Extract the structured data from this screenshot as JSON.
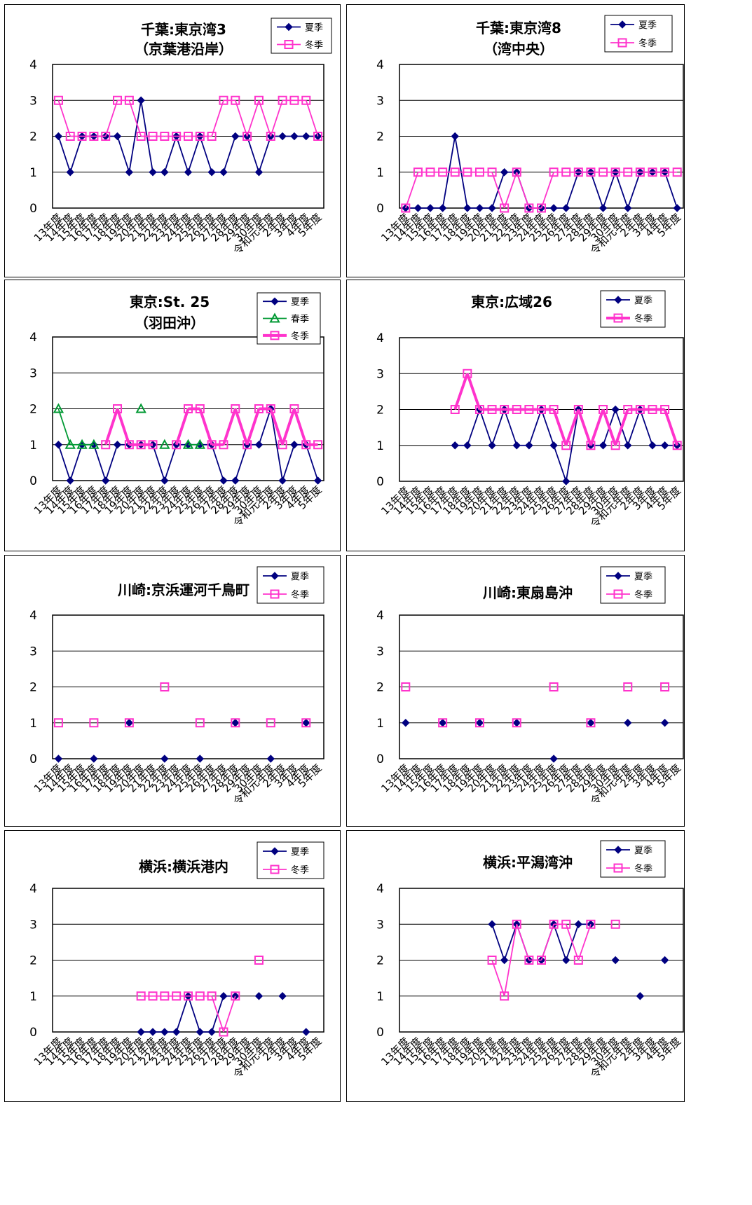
{
  "colors": {
    "summer": "#000080",
    "spring": "#009933",
    "winter": "#ff33cc",
    "grid": "#000000"
  },
  "chart_data": [
    {
      "type": "line",
      "title": [
        "千葉:東京湾3",
        "（京葉港沿岸）"
      ],
      "ylim": [
        0,
        4
      ],
      "yticks": [
        "0",
        "1",
        "2",
        "3",
        "4"
      ],
      "categories": [
        "13年度",
        "14年度",
        "15年度",
        "16年度",
        "17年度",
        "18年度",
        "19年度",
        "20年度",
        "21年度",
        "22年度",
        "23年度",
        "24年度",
        "25年度",
        "26年度",
        "27年度",
        "28年度",
        "29年度",
        "30年度",
        "令和元年度",
        "2年度",
        "3年度",
        "4年度",
        "5年度"
      ],
      "series": [
        {
          "name": "夏季",
          "key": "summer",
          "marker": "diamond",
          "values": [
            2,
            1,
            2,
            2,
            2,
            2,
            1,
            3,
            1,
            1,
            2,
            1,
            2,
            1,
            1,
            2,
            2,
            1,
            2,
            2,
            2,
            2,
            2
          ]
        },
        {
          "name": "冬季",
          "key": "winter",
          "marker": "square",
          "values": [
            3,
            2,
            2,
            2,
            2,
            3,
            3,
            2,
            2,
            2,
            2,
            2,
            2,
            2,
            3,
            3,
            2,
            3,
            2,
            3,
            3,
            3,
            2
          ]
        }
      ]
    },
    {
      "type": "line",
      "title": [
        "千葉:東京湾8",
        "（湾中央）"
      ],
      "ylim": [
        0,
        4
      ],
      "yticks": [
        "0",
        "1",
        "2",
        "3",
        "4"
      ],
      "categories": [
        "13年度",
        "14年度",
        "15年度",
        "16年度",
        "17年度",
        "18年度",
        "19年度",
        "20年度",
        "21年度",
        "22年度",
        "23年度",
        "24年度",
        "25年度",
        "26年度",
        "27年度",
        "28年度",
        "29年度",
        "30年度",
        "令和元年度",
        "2年度",
        "3年度",
        "4年度",
        "5年度"
      ],
      "series": [
        {
          "name": "夏季",
          "key": "summer",
          "marker": "diamond",
          "values": [
            0,
            0,
            0,
            0,
            2,
            0,
            0,
            0,
            1,
            1,
            0,
            0,
            0,
            0,
            1,
            1,
            0,
            1,
            0,
            1,
            1,
            1,
            0
          ]
        },
        {
          "name": "冬季",
          "key": "winter",
          "marker": "square",
          "values": [
            0,
            1,
            1,
            1,
            1,
            1,
            1,
            1,
            0,
            1,
            0,
            0,
            1,
            1,
            1,
            1,
            1,
            1,
            1,
            1,
            1,
            1,
            1
          ]
        }
      ]
    },
    {
      "type": "line",
      "title": [
        "東京:St. 25",
        "（羽田沖）"
      ],
      "ylim": [
        0,
        4
      ],
      "yticks": [
        "0",
        "1",
        "2",
        "3",
        "4"
      ],
      "categories": [
        "13年度",
        "14年度",
        "15年度",
        "16年度",
        "17年度",
        "18年度",
        "19年度",
        "20年度",
        "21年度",
        "22年度",
        "23年度",
        "24年度",
        "25年度",
        "26年度",
        "27年度",
        "28年度",
        "29年度",
        "30年度",
        "令和元年度",
        "2年度",
        "3年度",
        "4年度",
        "5年度"
      ],
      "series": [
        {
          "name": "夏季",
          "key": "summer",
          "marker": "diamond",
          "values": [
            1,
            0,
            1,
            1,
            0,
            1,
            1,
            1,
            1,
            0,
            1,
            1,
            1,
            1,
            0,
            0,
            1,
            1,
            2,
            0,
            1,
            1,
            0
          ]
        },
        {
          "name": "春季",
          "key": "spring",
          "marker": "triangle",
          "values": [
            2,
            1,
            1,
            1,
            null,
            null,
            null,
            2,
            null,
            1,
            null,
            1,
            1,
            null,
            null,
            null,
            null,
            null,
            null,
            null,
            null,
            null,
            null
          ]
        },
        {
          "name": "冬季",
          "key": "winter",
          "marker": "square",
          "thick": true,
          "values": [
            null,
            null,
            null,
            null,
            1,
            2,
            1,
            1,
            1,
            null,
            1,
            2,
            2,
            1,
            1,
            2,
            1,
            2,
            2,
            1,
            2,
            1,
            1
          ]
        }
      ]
    },
    {
      "type": "line",
      "title": [
        "東京:広域26"
      ],
      "ylim": [
        0,
        4
      ],
      "yticks": [
        "0",
        "1",
        "2",
        "3",
        "4"
      ],
      "categories": [
        "13年度",
        "14年度",
        "15年度",
        "16年度",
        "17年度",
        "18年度",
        "19年度",
        "20年度",
        "21年度",
        "22年度",
        "23年度",
        "24年度",
        "25年度",
        "26年度",
        "27年度",
        "28年度",
        "29年度",
        "30年度",
        "令和元年度",
        "2年度",
        "3年度",
        "4年度",
        "5年度"
      ],
      "series": [
        {
          "name": "夏季",
          "key": "summer",
          "marker": "diamond",
          "values": [
            null,
            null,
            null,
            null,
            1,
            1,
            2,
            1,
            2,
            1,
            1,
            2,
            1,
            0,
            2,
            1,
            1,
            2,
            1,
            2,
            1,
            1,
            1
          ]
        },
        {
          "name": "冬季",
          "key": "winter",
          "marker": "square",
          "thick": true,
          "values": [
            null,
            null,
            null,
            null,
            2,
            3,
            2,
            2,
            2,
            2,
            2,
            2,
            2,
            1,
            2,
            1,
            2,
            1,
            2,
            2,
            2,
            2,
            1
          ]
        }
      ]
    },
    {
      "type": "line",
      "title": [
        "川崎:京浜運河千鳥町"
      ],
      "ylim": [
        0,
        4
      ],
      "yticks": [
        "0",
        "1",
        "2",
        "3",
        "4"
      ],
      "categories": [
        "13年度",
        "14年度",
        "15年度",
        "16年度",
        "17年度",
        "18年度",
        "19年度",
        "20年度",
        "21年度",
        "22年度",
        "23年度",
        "24年度",
        "25年度",
        "26年度",
        "27年度",
        "28年度",
        "29年度",
        "30年度",
        "令和元年度",
        "2年度",
        "3年度",
        "4年度",
        "5年度"
      ],
      "series": [
        {
          "name": "夏季",
          "key": "summer",
          "marker": "diamond",
          "values": [
            0,
            null,
            null,
            0,
            null,
            null,
            1,
            null,
            null,
            0,
            null,
            null,
            0,
            null,
            null,
            1,
            null,
            null,
            0,
            null,
            null,
            1,
            null
          ]
        },
        {
          "name": "冬季",
          "key": "winter",
          "marker": "square",
          "values": [
            1,
            null,
            null,
            1,
            null,
            null,
            1,
            null,
            null,
            2,
            null,
            null,
            1,
            null,
            null,
            1,
            null,
            null,
            1,
            null,
            null,
            1,
            null
          ]
        }
      ]
    },
    {
      "type": "line",
      "title": [
        "川崎:東扇島沖"
      ],
      "ylim": [
        0,
        4
      ],
      "yticks": [
        "0",
        "1",
        "2",
        "3",
        "4"
      ],
      "categories": [
        "13年度",
        "14年度",
        "15年度",
        "16年度",
        "17年度",
        "18年度",
        "19年度",
        "20年度",
        "21年度",
        "22年度",
        "23年度",
        "24年度",
        "25年度",
        "26年度",
        "27年度",
        "28年度",
        "29年度",
        "30年度",
        "令和元年度",
        "2年度",
        "3年度",
        "4年度",
        "5年度"
      ],
      "series": [
        {
          "name": "夏季",
          "key": "summer",
          "marker": "diamond",
          "values": [
            1,
            null,
            null,
            1,
            null,
            null,
            1,
            null,
            null,
            1,
            null,
            null,
            0,
            null,
            null,
            1,
            null,
            null,
            1,
            null,
            null,
            1,
            null
          ]
        },
        {
          "name": "冬季",
          "key": "winter",
          "marker": "square",
          "values": [
            2,
            null,
            null,
            1,
            null,
            null,
            1,
            null,
            null,
            1,
            null,
            null,
            2,
            null,
            null,
            1,
            null,
            null,
            2,
            null,
            null,
            2,
            null
          ]
        }
      ]
    },
    {
      "type": "line",
      "title": [
        "横浜:横浜港内"
      ],
      "ylim": [
        0,
        4
      ],
      "yticks": [
        "0",
        "1",
        "2",
        "3",
        "4"
      ],
      "categories": [
        "13年度",
        "14年度",
        "15年度",
        "16年度",
        "17年度",
        "18年度",
        "19年度",
        "20年度",
        "21年度",
        "22年度",
        "23年度",
        "24年度",
        "25年度",
        "26年度",
        "27年度",
        "28年度",
        "29年度",
        "30年度",
        "令和元年度",
        "2年度",
        "3年度",
        "4年度",
        "5年度"
      ],
      "series": [
        {
          "name": "夏季",
          "key": "summer",
          "marker": "diamond",
          "values": [
            null,
            null,
            null,
            null,
            null,
            null,
            null,
            0,
            0,
            0,
            0,
            1,
            0,
            0,
            1,
            1,
            null,
            1,
            null,
            1,
            null,
            0,
            null
          ]
        },
        {
          "name": "冬季",
          "key": "winter",
          "marker": "square",
          "values": [
            null,
            null,
            null,
            null,
            null,
            null,
            null,
            1,
            1,
            1,
            1,
            1,
            1,
            1,
            0,
            1,
            null,
            2,
            null,
            null,
            null,
            null,
            null
          ]
        }
      ]
    },
    {
      "type": "line",
      "title": [
        "横浜:平潟湾沖"
      ],
      "ylim": [
        0,
        4
      ],
      "yticks": [
        "0",
        "1",
        "2",
        "3",
        "4"
      ],
      "categories": [
        "13年度",
        "14年度",
        "15年度",
        "16年度",
        "17年度",
        "18年度",
        "19年度",
        "20年度",
        "21年度",
        "22年度",
        "23年度",
        "24年度",
        "25年度",
        "26年度",
        "27年度",
        "28年度",
        "29年度",
        "30年度",
        "令和元年度",
        "2年度",
        "3年度",
        "4年度",
        "5年度"
      ],
      "series": [
        {
          "name": "夏季",
          "key": "summer",
          "marker": "diamond",
          "values": [
            null,
            null,
            null,
            null,
            null,
            null,
            null,
            3,
            2,
            3,
            2,
            2,
            3,
            2,
            3,
            3,
            null,
            2,
            null,
            1,
            null,
            2,
            null
          ]
        },
        {
          "name": "冬季",
          "key": "winter",
          "marker": "square",
          "values": [
            null,
            null,
            null,
            null,
            null,
            null,
            null,
            2,
            1,
            3,
            2,
            2,
            3,
            3,
            2,
            3,
            null,
            3,
            null,
            null,
            null,
            null,
            null
          ]
        }
      ]
    }
  ]
}
